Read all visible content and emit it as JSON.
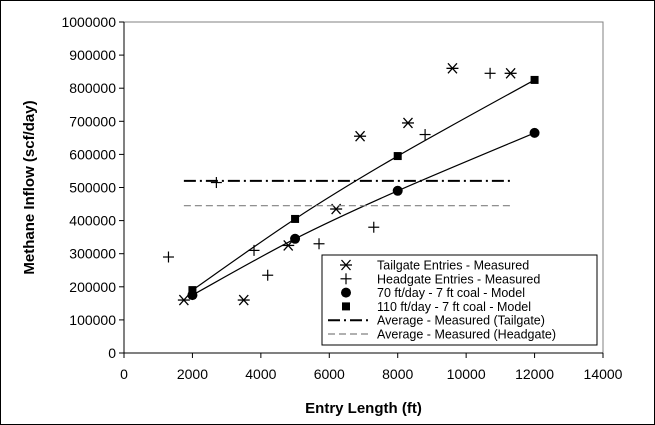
{
  "chart_data": {
    "type": "scatter",
    "xlabel": "Entry Length (ft)",
    "ylabel": "Methane Inflow (scf/day)",
    "xlim": [
      0,
      14000
    ],
    "ylim": [
      0,
      1000000
    ],
    "x_ticks": [
      "0",
      "2000",
      "4000",
      "6000",
      "8000",
      "10000",
      "12000",
      "14000"
    ],
    "y_ticks": [
      "0",
      "100000",
      "200000",
      "300000",
      "400000",
      "500000",
      "600000",
      "700000",
      "800000",
      "900000",
      "1000000"
    ],
    "grid": false,
    "legend_position": "bottom-right",
    "series": [
      {
        "name": "Tailgate Entries - Measured",
        "marker": "asterisk",
        "color": "#000000",
        "points": [
          [
            1750,
            160000
          ],
          [
            3500,
            160000
          ],
          [
            4800,
            325000
          ],
          [
            6200,
            435000
          ],
          [
            6900,
            655000
          ],
          [
            8300,
            695000
          ],
          [
            9600,
            860000
          ],
          [
            11300,
            845000
          ]
        ]
      },
      {
        "name": "Headgate Entries - Measured",
        "marker": "plus",
        "color": "#000000",
        "points": [
          [
            1300,
            290000
          ],
          [
            2700,
            515000
          ],
          [
            3800,
            310000
          ],
          [
            4200,
            235000
          ],
          [
            5700,
            330000
          ],
          [
            7300,
            380000
          ],
          [
            8800,
            660000
          ],
          [
            10700,
            845000
          ]
        ]
      },
      {
        "name": "70 ft/day - 7 ft coal - Model",
        "marker": "circle",
        "line": "solid",
        "color": "#000000",
        "points": [
          [
            2000,
            175000
          ],
          [
            5000,
            345000
          ],
          [
            8000,
            490000
          ],
          [
            12000,
            665000
          ]
        ]
      },
      {
        "name": "110 ft/day - 7 ft coal - Model",
        "marker": "square",
        "line": "solid",
        "color": "#000000",
        "points": [
          [
            2000,
            190000
          ],
          [
            5000,
            405000
          ],
          [
            8000,
            595000
          ],
          [
            12000,
            825000
          ]
        ]
      },
      {
        "name": "Average - Measured (Tailgate)",
        "marker": "none",
        "line": "dash-dot",
        "color": "#000000",
        "points": [
          [
            1750,
            520000
          ],
          [
            11300,
            520000
          ]
        ]
      },
      {
        "name": "Average - Measured (Headgate)",
        "marker": "none",
        "line": "dashed",
        "color": "#808080",
        "points": [
          [
            1750,
            445000
          ],
          [
            11300,
            445000
          ]
        ]
      }
    ]
  }
}
